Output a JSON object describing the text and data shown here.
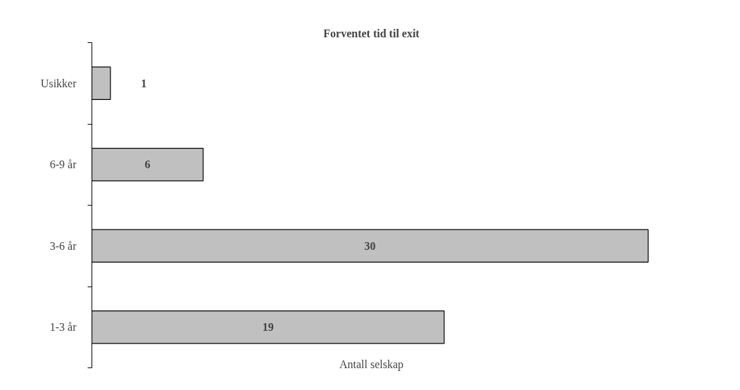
{
  "chart_data": {
    "type": "bar",
    "orientation": "horizontal",
    "title": "Forventet tid til exit",
    "xlabel": "Antall selskap",
    "categories": [
      "Usikker",
      "6-9 år",
      "3-6 år",
      "1-3 år"
    ],
    "values": [
      1,
      6,
      30,
      19
    ],
    "color": "#c0c0c0",
    "data_labels": true,
    "grid": false,
    "tick_labels": "y"
  }
}
